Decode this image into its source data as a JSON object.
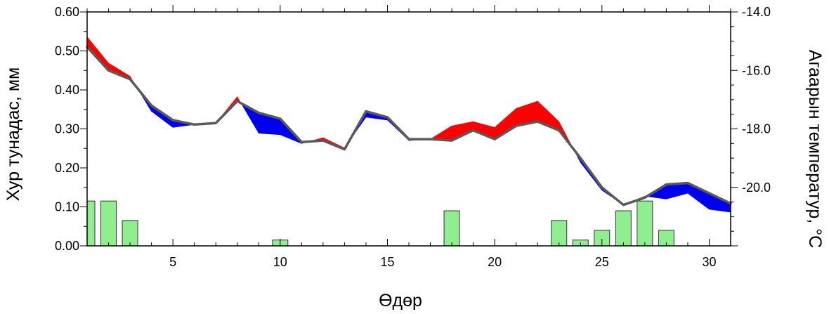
{
  "chart_data": {
    "type": "bar+line+area",
    "xlabel": "Өдөр",
    "ylabel_left": "Хур тунадас, мм",
    "ylabel_right": "Агаарын температур, °C",
    "xlim": [
      1,
      31
    ],
    "ylim_left": [
      0,
      0.6
    ],
    "ylim_right": [
      -22,
      -14
    ],
    "x_ticks": [
      5,
      10,
      15,
      20,
      25,
      30
    ],
    "x_tick_labels": [
      "5",
      "10",
      "15",
      "20",
      "25",
      "30"
    ],
    "y_left_ticks": [
      0,
      0.1,
      0.2,
      0.3,
      0.4,
      0.5,
      0.6
    ],
    "y_left_tick_labels": [
      "0.00",
      "0.10",
      "0.20",
      "0.30",
      "0.40",
      "0.50",
      "0.60"
    ],
    "y_right_ticks": [
      -20,
      -18,
      -16,
      -14
    ],
    "y_right_tick_labels": [
      "-20.0",
      "-18.0",
      "-16.0",
      "-14.0"
    ],
    "precipitation": {
      "days": [
        1,
        2,
        3,
        10,
        18,
        23,
        24,
        25,
        26,
        27,
        28
      ],
      "values": [
        0.115,
        0.115,
        0.065,
        0.015,
        0.09,
        0.065,
        0.015,
        0.04,
        0.09,
        0.115,
        0.04
      ]
    },
    "temperature_mean": {
      "days": [
        1,
        2,
        3,
        4,
        5,
        6,
        7,
        8,
        9,
        10,
        11,
        12,
        13,
        14,
        15,
        16,
        17,
        18,
        19,
        20,
        21,
        22,
        23,
        24,
        25,
        26,
        27,
        28,
        29,
        30,
        31
      ],
      "values": [
        -15.2,
        -16.0,
        -16.3,
        -17.2,
        -17.7,
        -17.85,
        -17.8,
        -17.05,
        -17.45,
        -17.65,
        -18.45,
        -18.4,
        -18.7,
        -17.4,
        -17.6,
        -18.35,
        -18.35,
        -18.4,
        -18.05,
        -18.35,
        -17.9,
        -17.75,
        -18.05,
        -19.0,
        -20.0,
        -20.6,
        -20.35,
        -19.9,
        -19.85,
        -20.2,
        -20.55
      ]
    },
    "temperature_current": {
      "days": [
        1,
        2,
        3,
        4,
        5,
        6,
        7,
        8,
        9,
        10,
        11,
        12,
        13,
        14,
        15,
        16,
        17,
        18,
        19,
        20,
        21,
        22,
        23,
        24,
        25,
        26,
        27,
        28,
        29,
        30,
        31
      ],
      "values": [
        -14.85,
        -15.75,
        -16.2,
        -17.4,
        -17.95,
        -17.85,
        -17.8,
        -16.9,
        -18.15,
        -18.2,
        -18.5,
        -18.3,
        -18.65,
        -17.6,
        -17.7,
        -18.4,
        -18.35,
        -17.9,
        -17.75,
        -17.95,
        -17.3,
        -17.05,
        -17.75,
        -19.15,
        -20.1,
        -20.6,
        -20.3,
        -20.4,
        -20.2,
        -20.75,
        -20.85
      ]
    },
    "colors": {
      "warmer": "#ff0000",
      "colder": "#0000ee",
      "mean_line": "#5a5a5a",
      "bars_fill": "#90ee90",
      "bars_stroke": "#333333"
    },
    "grid": false
  }
}
